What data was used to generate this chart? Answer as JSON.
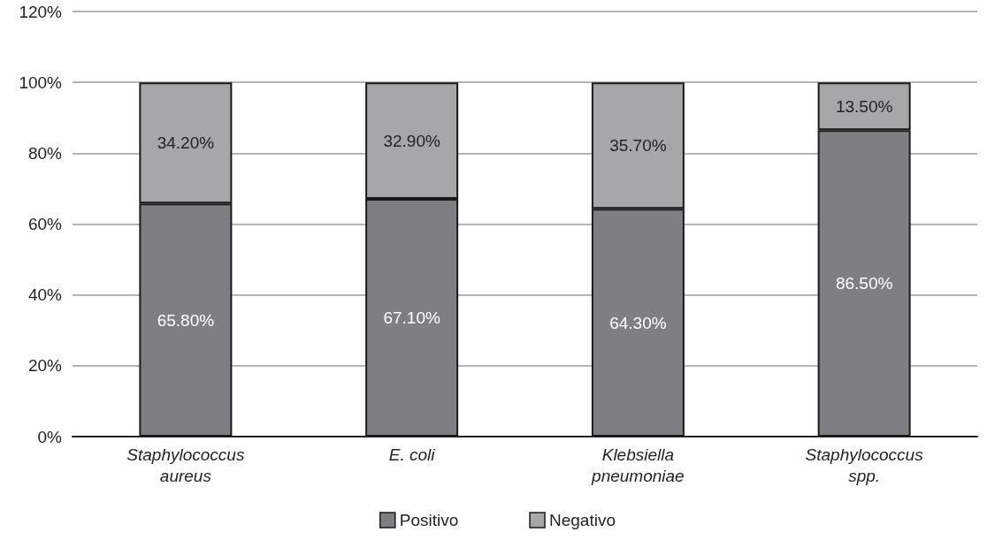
{
  "chart_data": {
    "type": "bar",
    "stacked": true,
    "categories": [
      "Staphylococcus aureus",
      "E. coli",
      "Klebsiella pneumoniae",
      "Staphylococcus spp."
    ],
    "series": [
      {
        "name": "Positivo",
        "color": "#7f7f83",
        "values": [
          65.8,
          67.1,
          64.3,
          86.5
        ],
        "value_labels": [
          "65.80%",
          "67.10%",
          "64.30%",
          "86.50%"
        ]
      },
      {
        "name": "Negativo",
        "color": "#a7a7aa",
        "values": [
          34.2,
          32.9,
          35.7,
          13.5
        ],
        "value_labels": [
          "34.20%",
          "32.90%",
          "35.70%",
          "13.50%"
        ]
      }
    ],
    "ylim": [
      0,
      120
    ],
    "yticks": [
      {
        "value": 0,
        "label": "0%"
      },
      {
        "value": 20,
        "label": "20%"
      },
      {
        "value": 40,
        "label": "40%"
      },
      {
        "value": 60,
        "label": "60%"
      },
      {
        "value": 80,
        "label": "80%"
      },
      {
        "value": 100,
        "label": "100%"
      },
      {
        "value": 120,
        "label": "120%"
      }
    ],
    "grid": "y",
    "legend": "bottom"
  }
}
